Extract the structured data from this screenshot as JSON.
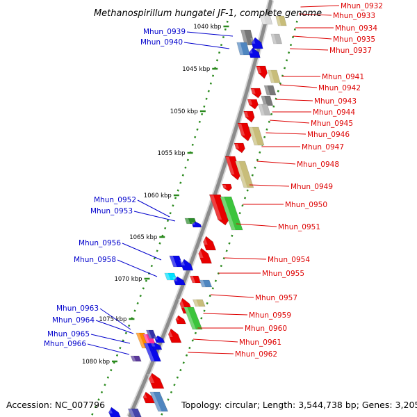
{
  "title": "Methanospirillum hungatei JF-1, complete genome",
  "footer": {
    "accession": "Accession: NC_007796",
    "topology": "Topology: circular; Length: 3,544,738 bp; Genes: 3,205"
  },
  "colors": {
    "backbone": "#8c8c8c",
    "tick": "#2b8a1e",
    "left_label": "#0000cc",
    "right_label": "#dd0000"
  },
  "kbp_markers": [
    "1040 kbp",
    "1045 kbp",
    "1050 kbp",
    "1055 kbp",
    "1060 kbp",
    "1065 kbp",
    "1070 kbp",
    "1075 kbp",
    "1080 kbp"
  ],
  "left_genes": [
    "Mhun_0939",
    "Mhun_0940",
    "Mhun_0952",
    "Mhun_0953",
    "Mhun_0956",
    "Mhun_0958",
    "Mhun_0963",
    "Mhun_0964",
    "Mhun_0965",
    "Mhun_0966"
  ],
  "right_genes": [
    "Mhun_0932",
    "Mhun_0933",
    "Mhun_0934",
    "Mhun_0935",
    "Mhun_0937",
    "Mhun_0941",
    "Mhun_0942",
    "Mhun_0943",
    "Mhun_0944",
    "Mhun_0945",
    "Mhun_0946",
    "Mhun_0947",
    "Mhun_0948",
    "Mhun_0949",
    "Mhun_0950",
    "Mhun_0951",
    "Mhun_0954",
    "Mhun_0955",
    "Mhun_0957",
    "Mhun_0959",
    "Mhun_0960",
    "Mhun_0961",
    "Mhun_0962"
  ]
}
